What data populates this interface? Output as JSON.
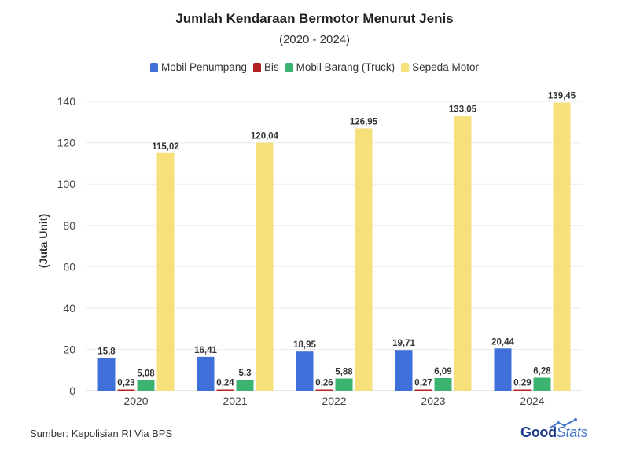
{
  "header": {
    "title": "Jumlah Kendaraan Bermotor Menurut Jenis",
    "subtitle": "(2020 - 2024)"
  },
  "footer": {
    "source": "Sumber: Kepolisian RI Via BPS",
    "brand_good": "Good",
    "brand_stats": "Stats"
  },
  "chart_data": {
    "type": "bar",
    "title": "Jumlah Kendaraan Bermotor Menurut Jenis",
    "subtitle": "(2020 - 2024)",
    "xlabel": "",
    "ylabel": "(Juta Unit)",
    "ylim": [
      0,
      145
    ],
    "yticks": [
      0,
      20,
      40,
      60,
      80,
      100,
      120,
      140
    ],
    "grid": true,
    "legend_position": "top-center",
    "categories": [
      "2020",
      "2021",
      "2022",
      "2023",
      "2024"
    ],
    "series": [
      {
        "name": "Mobil Penumpang",
        "color": "#3f6fd8",
        "values": [
          15.8,
          16.41,
          18.95,
          19.71,
          20.44
        ],
        "labels": [
          "15,8",
          "16,41",
          "18,95",
          "19,71",
          "20,44"
        ]
      },
      {
        "name": "Bis",
        "color": "#b22222",
        "values": [
          0.23,
          0.24,
          0.26,
          0.27,
          0.29
        ],
        "labels": [
          "0,23",
          "0,24",
          "0,26",
          "0,27",
          "0,29"
        ]
      },
      {
        "name": "Mobil Barang (Truck)",
        "color": "#3cb371",
        "values": [
          5.08,
          5.3,
          5.88,
          6.09,
          6.28
        ],
        "labels": [
          "5,08",
          "5,3",
          "5,88",
          "6,09",
          "6,28"
        ]
      },
      {
        "name": "Sepeda Motor",
        "color": "#f7df7c",
        "values": [
          115.02,
          120.04,
          126.95,
          133.05,
          139.45
        ],
        "labels": [
          "115,02",
          "120,04",
          "126,95",
          "133,05",
          "139,45"
        ]
      }
    ]
  }
}
